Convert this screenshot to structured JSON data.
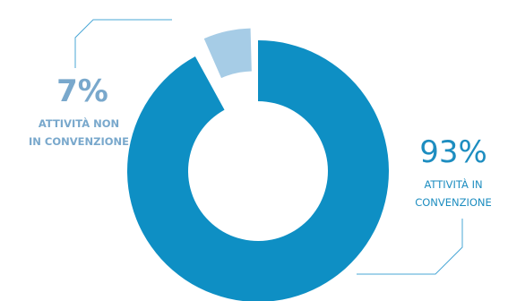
{
  "chart_data": {
    "type": "pie",
    "categories": [
      "Attività in convenzione",
      "Attività non in convenzione"
    ],
    "values": [
      93,
      7
    ],
    "colors": [
      "#0e8fc4",
      "#a6cce6"
    ],
    "slice_labels": [
      {
        "value": "93%",
        "lines": [
          "ATTIVITÀ IN",
          "CONVENZIONE"
        ]
      },
      {
        "value": "7%",
        "lines": [
          "ATTIVITÀ NON",
          "IN CONVENZIONE"
        ]
      }
    ],
    "leader_line_color": "#4aa7d6",
    "donut": true,
    "exploded_slice": "Attività non in convenzione"
  }
}
